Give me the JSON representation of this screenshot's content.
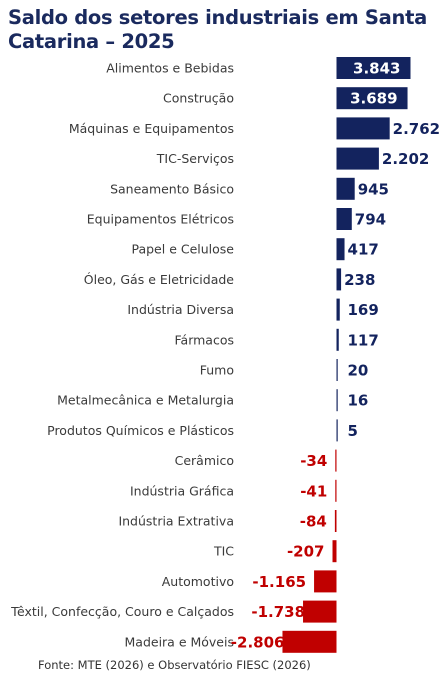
{
  "chart_data": {
    "type": "bar",
    "orientation": "horizontal",
    "title": "Saldo dos setores industriais em Santa Catarina – 2025",
    "source": "Fonte: MTE (2026) e Observatório FIESC (2026)",
    "categories": [
      "Alimentos e Bebidas",
      "Construção",
      "Máquinas e Equipamentos",
      "TIC-Serviços",
      "Saneamento Básico",
      "Equipamentos Elétricos",
      "Papel e Celulose",
      "Óleo, Gás e Eletricidade",
      "Indústria Diversa",
      "Fármacos",
      "Fumo",
      "Metalmecânica e Metalurgia",
      "Produtos Químicos e Plásticos",
      "Cerâmico",
      "Indústria Gráfica",
      "Indústria Extrativa",
      "TIC",
      "Automotivo",
      "Têxtil, Confecção, Couro e Calçados",
      "Madeira e Móveis"
    ],
    "values": [
      3843,
      3689,
      2762,
      2202,
      945,
      794,
      417,
      238,
      169,
      117,
      20,
      16,
      5,
      -34,
      -41,
      -84,
      -207,
      -1165,
      -1738,
      -2806
    ],
    "value_labels": [
      "3.843",
      "3.689",
      "2.762",
      "2.202",
      "945",
      "794",
      "417",
      "238",
      "169",
      "117",
      "20",
      "16",
      "5",
      "-34",
      "-41",
      "-84",
      "-207",
      "-1.165",
      "-1.738",
      "-2.806"
    ],
    "colors": {
      "positive": "#13235e",
      "negative": "#c00000",
      "positive_label_outside": "#13235e",
      "negative_label": "#c00000",
      "label_inside": "#ffffff"
    },
    "grid": false,
    "legend": "none"
  }
}
